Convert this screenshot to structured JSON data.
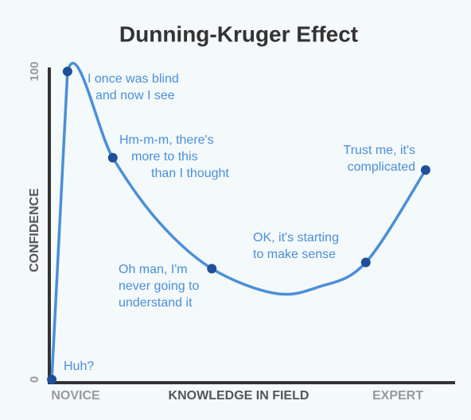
{
  "chart_data": {
    "type": "line",
    "title": "Dunning-Kruger Effect",
    "xlabel": "KNOWLEDGE IN FIELD",
    "ylabel": "CONFIDENCE",
    "x_start_label": "NOVICE",
    "x_end_label": "EXPERT",
    "xlim": [
      0,
      100
    ],
    "ylim": [
      0,
      100
    ],
    "yticks": [
      0,
      100
    ],
    "series": [
      {
        "name": "Confidence",
        "color": "#4a8fd8",
        "marker_color": "#1f4f9a",
        "x": [
          0.6,
          4.5,
          15.7,
          27.2,
          40.2,
          55.7,
          66.5,
          78.3,
          93.1
        ],
        "values": [
          0,
          100,
          72,
          51,
          36,
          28,
          30,
          38,
          68
        ],
        "point_labels": [
          [
            "Huh?"
          ],
          [
            "I once was blind",
            "and now I see"
          ],
          [
            "Hm-m-m, there's",
            "more to this",
            "than I thought"
          ],
          null,
          [
            "Oh man, I'm",
            "never going to",
            "understand it"
          ],
          null,
          null,
          [
            "OK, it's starting",
            "to make sense"
          ],
          [
            "Trust me, it's",
            "complicated"
          ]
        ]
      }
    ]
  }
}
